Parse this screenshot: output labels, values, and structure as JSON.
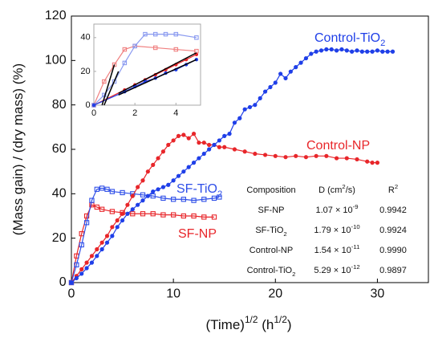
{
  "chart_data": [
    {
      "type": "line",
      "x_label": [
        "(Time)",
        {
          "sup": "1/2"
        },
        " (h",
        {
          "sup": "1/2"
        },
        ")"
      ],
      "y_label": [
        "(Mass gain) / (dry mass) (%)"
      ],
      "xlim": [
        0,
        35
      ],
      "ylim": [
        0,
        120
      ],
      "xticks": [
        0,
        10,
        20,
        30
      ],
      "yticks": [
        0,
        20,
        40,
        60,
        80,
        100,
        120
      ],
      "series": [
        {
          "name": [
            "SF-NP"
          ],
          "color": "#e8262a",
          "marker": "square",
          "x": [
            0,
            0.5,
            1,
            1.5,
            2,
            2.5,
            3,
            4,
            5,
            6,
            7,
            8,
            9,
            10,
            11,
            12,
            13,
            14
          ],
          "values": [
            0,
            12,
            22,
            30,
            35,
            34,
            33,
            32,
            31.5,
            31,
            31,
            31,
            30.5,
            30.5,
            30,
            30,
            29.5,
            29.5
          ]
        },
        {
          "name": [
            "SF-TiO",
            {
              "sub": "2"
            }
          ],
          "color": "#2f4fe8",
          "marker": "square",
          "x": [
            0,
            0.5,
            1,
            1.5,
            2,
            2.5,
            3,
            3.5,
            4,
            5,
            6,
            7,
            8,
            9,
            10,
            11,
            12,
            13,
            14,
            14.5
          ],
          "values": [
            0,
            8,
            17,
            27,
            37,
            42,
            42.5,
            42,
            41,
            40.5,
            40,
            39.5,
            39,
            38,
            37.5,
            37.5,
            37,
            37.5,
            38,
            38.5
          ]
        },
        {
          "name": [
            "Control-NP"
          ],
          "color": "#e8262a",
          "marker": "circle",
          "x": [
            0,
            0.5,
            1,
            1.5,
            2,
            2.5,
            3,
            3.5,
            4,
            4.5,
            5,
            5.5,
            6,
            6.5,
            7,
            7.5,
            8,
            8.5,
            9,
            9.5,
            10,
            10.5,
            11,
            11.5,
            12,
            12.5,
            13,
            13.5,
            14,
            14.5,
            15,
            16,
            17,
            18,
            19,
            20,
            21,
            22,
            23,
            24,
            25,
            26,
            27,
            28,
            29,
            29.5,
            30
          ],
          "values": [
            0,
            3,
            6,
            9,
            12,
            15,
            18,
            21,
            25,
            28,
            31,
            35,
            39,
            43,
            46,
            50,
            53,
            56,
            59,
            62,
            64,
            66,
            66.5,
            65,
            67,
            63,
            63,
            62,
            62,
            61,
            61,
            60,
            59,
            58,
            57.5,
            57,
            56.5,
            57,
            56.5,
            57,
            57,
            56,
            56,
            55.5,
            54.5,
            54,
            54
          ]
        },
        {
          "name": [
            "Control-TiO",
            {
              "sub": "2"
            }
          ],
          "color": "#1f3fe8",
          "marker": "circle",
          "x": [
            0,
            0.5,
            1,
            1.5,
            2,
            2.5,
            3,
            3.5,
            4,
            4.5,
            5,
            5.5,
            6,
            6.5,
            7,
            7.5,
            8,
            8.5,
            9,
            9.5,
            10,
            10.5,
            11,
            11.5,
            12,
            12.5,
            13,
            13.5,
            14,
            14.5,
            15,
            15.5,
            16,
            16.5,
            17,
            17.5,
            18,
            18.5,
            19,
            19.5,
            20,
            20.5,
            21,
            21.5,
            22,
            22.5,
            23,
            23.5,
            24,
            24.5,
            25,
            25.5,
            26,
            26.5,
            27,
            27.5,
            28,
            28.5,
            29,
            29.5,
            30,
            30.5,
            31,
            31.5
          ],
          "values": [
            0,
            2,
            4,
            6.5,
            9,
            12,
            15,
            18,
            21,
            25,
            28,
            31,
            33,
            35,
            37,
            39,
            41,
            42,
            43,
            44,
            46,
            48,
            50,
            52,
            54,
            56,
            58,
            60,
            62,
            64,
            66,
            67,
            72,
            74,
            78,
            79,
            80,
            83,
            86,
            88,
            90,
            94,
            92,
            95,
            97,
            99,
            101,
            103,
            104,
            104.5,
            105,
            105,
            104.5,
            105,
            104.5,
            104,
            104.5,
            104,
            104,
            104,
            104.5,
            104,
            104,
            104
          ]
        }
      ]
    },
    {
      "type": "line",
      "xlim": [
        0,
        5.2
      ],
      "ylim": [
        0,
        48
      ],
      "xticks": [
        0,
        2,
        4
      ],
      "yticks": [
        0,
        20,
        40
      ],
      "series": [
        {
          "color": "#f08080",
          "marker": "square",
          "x": [
            0,
            0.5,
            1,
            1.5,
            2,
            3,
            4,
            5
          ],
          "values": [
            0,
            14,
            24,
            33,
            35,
            34,
            33,
            32
          ]
        },
        {
          "color": "#8a9af0",
          "marker": "square",
          "x": [
            0,
            0.5,
            1,
            1.5,
            2,
            2.5,
            3,
            3.5,
            4,
            5
          ],
          "values": [
            0,
            6,
            14,
            25,
            35,
            42,
            42,
            42,
            42,
            40
          ]
        },
        {
          "color": "#e8262a",
          "marker": "circle",
          "x": [
            0,
            1.5,
            2,
            2.5,
            3,
            3.5,
            4,
            4.5,
            5
          ],
          "values": [
            0,
            9,
            12,
            15,
            18,
            21,
            24,
            27,
            30
          ]
        },
        {
          "color": "#1f3fe8",
          "marker": "circle",
          "x": [
            0,
            1.5,
            2,
            2.5,
            3,
            3.5,
            4,
            4.5,
            5
          ],
          "values": [
            0,
            8,
            11,
            14,
            16,
            19,
            21,
            24,
            27
          ]
        },
        {
          "color": "#000000",
          "x": [
            0.4,
            1
          ],
          "values": [
            0,
            24
          ]
        },
        {
          "color": "#000000",
          "x": [
            0.5,
            1.2
          ],
          "values": [
            0,
            20
          ]
        },
        {
          "color": "#000000",
          "x": [
            1.2,
            5
          ],
          "values": [
            7,
            31
          ]
        },
        {
          "color": "#000000",
          "x": [
            1.2,
            5
          ],
          "values": [
            6,
            27
          ]
        }
      ]
    }
  ],
  "table": {
    "header": [
      [
        "Composition"
      ],
      [
        "D (cm",
        {
          "sup": "2"
        },
        "/s)"
      ],
      [
        "R",
        {
          "sup": "2"
        }
      ]
    ],
    "rows": [
      [
        [
          "SF-NP"
        ],
        [
          "1.07 × 10",
          {
            "sup": "-9"
          }
        ],
        [
          "0.9942"
        ]
      ],
      [
        [
          "SF-TiO",
          {
            "sub": "2"
          }
        ],
        [
          "1.79 × 10",
          {
            "sup": "-10"
          }
        ],
        [
          "0.9924"
        ]
      ],
      [
        [
          "Control-NP"
        ],
        [
          "1.54 × 10",
          {
            "sup": "-11"
          }
        ],
        [
          "0.9990"
        ]
      ],
      [
        [
          "Control-TiO",
          {
            "sub": "2"
          }
        ],
        [
          "5.29 × 10",
          {
            "sup": "-12"
          }
        ],
        [
          "0.9897"
        ]
      ]
    ]
  }
}
